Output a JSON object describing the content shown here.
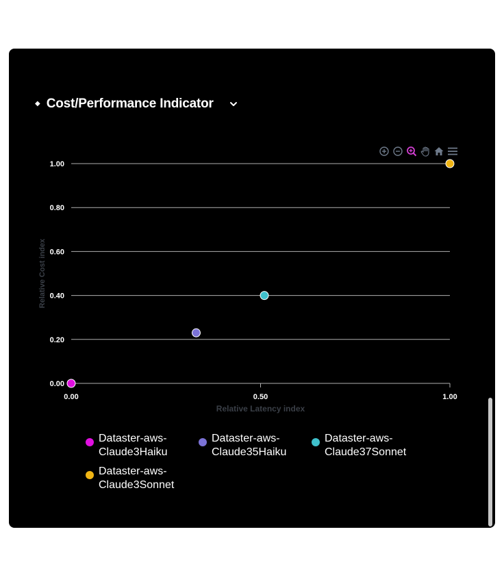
{
  "header": {
    "bullet": "◆",
    "title": "Cost/Performance Indicator"
  },
  "toolbar": {
    "icons": [
      "zoom-in-icon",
      "zoom-out-icon",
      "selection-zoom-icon",
      "pan-icon",
      "home-icon",
      "menu-icon"
    ]
  },
  "colors": {
    "background": "#000000",
    "gridline": "#b0b0b0",
    "tick_text": "#ffffff",
    "axis_title": "#3a3f47",
    "toolbar_icon": "#6e7a8a",
    "toolbar_active": "#d23fd2"
  },
  "chart_data": {
    "type": "scatter",
    "title": "",
    "xlabel": "Relative Latency index",
    "ylabel": "Relative Cost index",
    "xlim": [
      0,
      1
    ],
    "ylim": [
      0,
      1
    ],
    "x_ticks": [
      "0.00",
      "0.50",
      "1.00"
    ],
    "y_ticks": [
      "0.00",
      "0.20",
      "0.40",
      "0.60",
      "0.80",
      "1.00"
    ],
    "grid": true,
    "legend_position": "bottom",
    "series": [
      {
        "name": "Dataster-aws-Claude3Haiku",
        "color": "#e010e0",
        "points": [
          [
            0.0,
            0.0
          ]
        ]
      },
      {
        "name": "Dataster-aws-Claude35Haiku",
        "color": "#7b72d6",
        "points": [
          [
            0.33,
            0.23
          ]
        ]
      },
      {
        "name": "Dataster-aws-Claude37Sonnet",
        "color": "#3fc0cc",
        "points": [
          [
            0.51,
            0.4
          ]
        ]
      },
      {
        "name": "Dataster-aws-Claude3Sonnet",
        "color": "#f0b514",
        "points": [
          [
            1.0,
            1.0
          ]
        ]
      }
    ]
  }
}
